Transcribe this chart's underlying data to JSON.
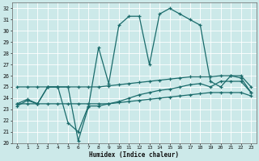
{
  "xlabel": "Humidex (Indice chaleur)",
  "xlim": [
    -0.5,
    23.5
  ],
  "ylim": [
    20,
    32.5
  ],
  "yticks": [
    20,
    21,
    22,
    23,
    24,
    25,
    26,
    27,
    28,
    29,
    30,
    31,
    32
  ],
  "xticks": [
    0,
    1,
    2,
    3,
    4,
    5,
    6,
    7,
    8,
    9,
    10,
    11,
    12,
    13,
    14,
    15,
    16,
    17,
    18,
    19,
    20,
    21,
    22,
    23
  ],
  "background_color": "#cce9e9",
  "grid_color": "#ffffff",
  "line_color": "#1a6b6b",
  "lines": [
    {
      "x": [
        0,
        1,
        2,
        3,
        4,
        5,
        6,
        7,
        8,
        9,
        10,
        11,
        12,
        13,
        14,
        15,
        16,
        17,
        18,
        19,
        20,
        21,
        22,
        23
      ],
      "y": [
        23.5,
        23.9,
        23.5,
        25.0,
        25.0,
        25.0,
        20.2,
        23.2,
        28.5,
        25.3,
        30.5,
        31.3,
        31.3,
        27.0,
        31.5,
        32.0,
        31.5,
        31.0,
        30.5,
        25.5,
        25.0,
        26.0,
        25.8,
        24.5
      ],
      "marker": "+"
    },
    {
      "x": [
        0,
        1,
        2,
        3,
        4,
        5,
        6,
        7,
        8,
        9,
        10,
        11,
        12,
        13,
        14,
        15,
        16,
        17,
        18,
        19,
        20,
        21,
        22,
        23
      ],
      "y": [
        25.0,
        25.0,
        25.0,
        25.0,
        25.0,
        25.0,
        25.0,
        25.0,
        25.0,
        25.1,
        25.2,
        25.3,
        25.4,
        25.5,
        25.6,
        25.7,
        25.8,
        25.9,
        25.9,
        25.9,
        26.0,
        26.0,
        26.0,
        25.0
      ],
      "marker": "+"
    },
    {
      "x": [
        0,
        1,
        2,
        3,
        4,
        5,
        6,
        7,
        8,
        9,
        10,
        11,
        12,
        13,
        14,
        15,
        16,
        17,
        18,
        19,
        20,
        21,
        22,
        23
      ],
      "y": [
        23.5,
        23.5,
        23.5,
        25.0,
        25.0,
        21.8,
        21.0,
        23.3,
        23.3,
        23.5,
        23.7,
        24.0,
        24.3,
        24.5,
        24.7,
        24.8,
        25.0,
        25.2,
        25.3,
        25.0,
        25.5,
        25.5,
        25.5,
        24.5
      ],
      "marker": "+"
    },
    {
      "x": [
        0,
        1,
        2,
        3,
        4,
        5,
        6,
        7,
        8,
        9,
        10,
        11,
        12,
        13,
        14,
        15,
        16,
        17,
        18,
        19,
        20,
        21,
        22,
        23
      ],
      "y": [
        23.3,
        23.8,
        23.5,
        23.5,
        23.5,
        23.5,
        23.5,
        23.5,
        23.5,
        23.5,
        23.6,
        23.7,
        23.8,
        23.9,
        24.0,
        24.1,
        24.2,
        24.3,
        24.4,
        24.5,
        24.5,
        24.5,
        24.5,
        24.2
      ],
      "marker": "+"
    }
  ],
  "figsize": [
    3.2,
    2.0
  ],
  "dpi": 100
}
